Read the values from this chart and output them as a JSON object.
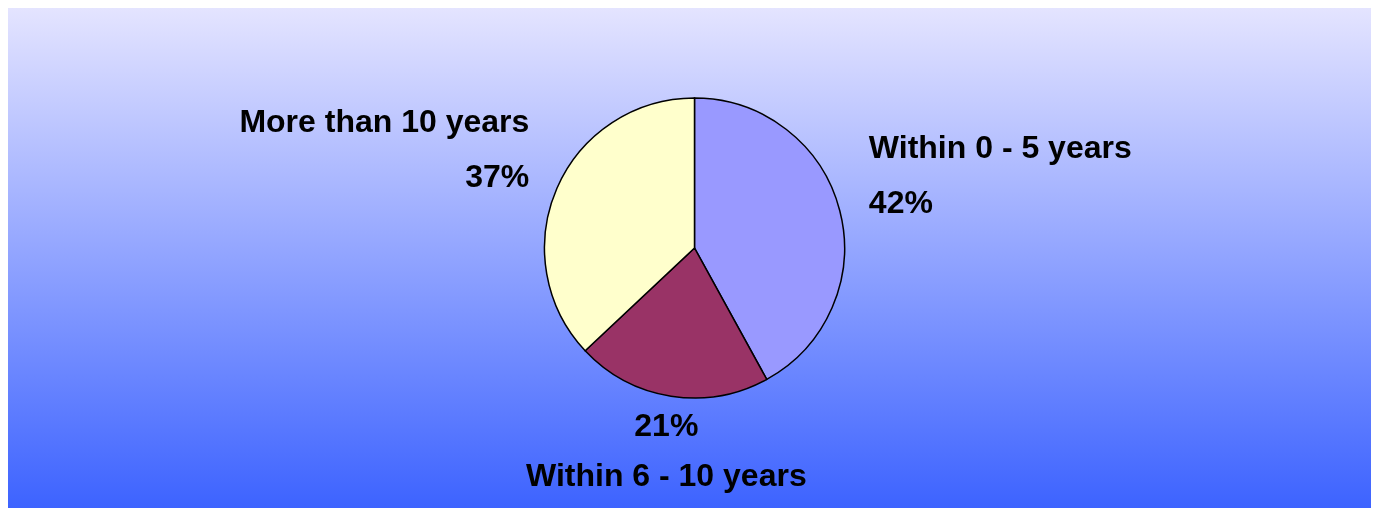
{
  "chart_data": {
    "type": "pie",
    "categories": [
      "Within 0 - 5 years",
      "Within 6 - 10 years",
      "More than 10 years"
    ],
    "values": [
      42,
      21,
      37
    ],
    "colors": [
      "#9999ff",
      "#993366",
      "#ffffcc"
    ],
    "value_labels": [
      "42%",
      "21%",
      "37%"
    ],
    "legend": false
  }
}
